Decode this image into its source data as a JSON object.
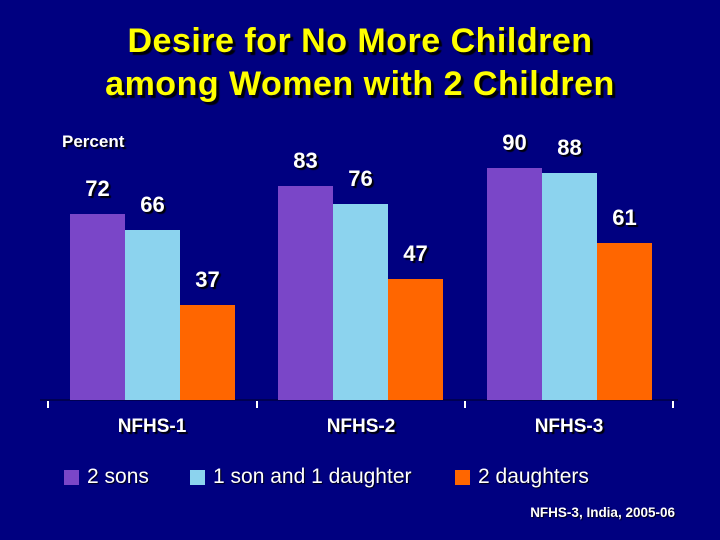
{
  "slide": {
    "title_line1": "Desire for No More Children",
    "title_line2": "among Women with 2 Children",
    "source_note": "NFHS-3, India, 2005-06",
    "colors": {
      "background": "#000080",
      "title_text": "#FFFF00",
      "body_text": "#FFFFFF"
    }
  },
  "chart_data": {
    "type": "bar",
    "title": "Desire for No More Children among Women with 2 Children",
    "xlabel": "",
    "ylabel": "Percent",
    "ylim": [
      0,
      100
    ],
    "grid": false,
    "legend_position": "bottom",
    "categories": [
      "NFHS-1",
      "NFHS-2",
      "NFHS-3"
    ],
    "series": [
      {
        "name": "2 sons",
        "color": "#7A46C8",
        "values": [
          72,
          83,
          90
        ]
      },
      {
        "name": "1 son and 1 daughter",
        "color": "#8CD3EE",
        "values": [
          66,
          76,
          88
        ]
      },
      {
        "name": "2 daughters",
        "color": "#FF6600",
        "values": [
          37,
          47,
          61
        ]
      }
    ]
  }
}
